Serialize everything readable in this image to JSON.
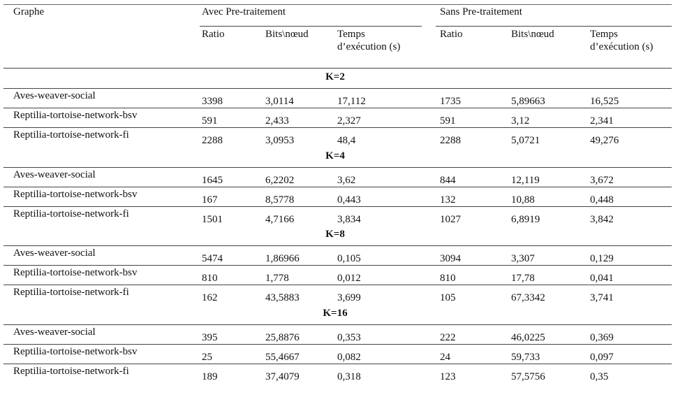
{
  "header": {
    "graphe": "Graphe",
    "groups": [
      "Avec Pre-traitement",
      "Sans Pre-traitement"
    ],
    "columns": [
      "Ratio",
      "Bits\\nœud",
      "Temps\nd’exécution (s)"
    ]
  },
  "sections": [
    {
      "k": "K=2",
      "rows": [
        {
          "name": "Aves-weaver-social",
          "avec": [
            "3398",
            "3,0114",
            "17,112"
          ],
          "sans": [
            "1735",
            "5,89663",
            "16,525"
          ]
        },
        {
          "name": "Reptilia-tortoise-network-bsv",
          "avec": [
            "591",
            "2,433",
            "2,327"
          ],
          "sans": [
            "591",
            "3,12",
            "2,341"
          ]
        },
        {
          "name": "Reptilia-tortoise-network-fi",
          "avec": [
            "2288",
            "3,0953",
            "48,4"
          ],
          "sans": [
            "2288",
            "5,0721",
            "49,276"
          ]
        }
      ]
    },
    {
      "k": "K=4",
      "rows": [
        {
          "name": "Aves-weaver-social",
          "avec": [
            "1645",
            "6,2202",
            "3,62"
          ],
          "sans": [
            "844",
            "12,119",
            "3,672"
          ]
        },
        {
          "name": "Reptilia-tortoise-network-bsv",
          "avec": [
            "167",
            "8,5778",
            "0,443"
          ],
          "sans": [
            "132",
            "10,88",
            "0,448"
          ]
        },
        {
          "name": "Reptilia-tortoise-network-fi",
          "avec": [
            "1501",
            "4,7166",
            "3,834"
          ],
          "sans": [
            "1027",
            "6,8919",
            "3,842"
          ]
        }
      ]
    },
    {
      "k": "K=8",
      "rows": [
        {
          "name": "Aves-weaver-social",
          "avec": [
            "5474",
            "1,86966",
            "0,105"
          ],
          "sans": [
            "3094",
            "3,307",
            "0,129"
          ]
        },
        {
          "name": "Reptilia-tortoise-network-bsv",
          "avec": [
            "810",
            "1,778",
            "0,012"
          ],
          "sans": [
            "810",
            "17,78",
            "0,041"
          ]
        },
        {
          "name": "Reptilia-tortoise-network-fi",
          "avec": [
            "162",
            "43,5883",
            "3,699"
          ],
          "sans": [
            "105",
            "67,3342",
            "3,741"
          ]
        }
      ]
    },
    {
      "k": "K=16",
      "rows": [
        {
          "name": "Aves-weaver-social",
          "avec": [
            "395",
            "25,8876",
            "0,353"
          ],
          "sans": [
            "222",
            "46,0225",
            "0,369"
          ]
        },
        {
          "name": "Reptilia-tortoise-network-bsv",
          "avec": [
            "25",
            "55,4667",
            "0,082"
          ],
          "sans": [
            "24",
            "59,733",
            "0,097"
          ]
        },
        {
          "name": "Reptilia-tortoise-network-fi",
          "avec": [
            "189",
            "37,4079",
            "0,318"
          ],
          "sans": [
            "123",
            "57,5756",
            "0,35"
          ]
        }
      ]
    }
  ]
}
